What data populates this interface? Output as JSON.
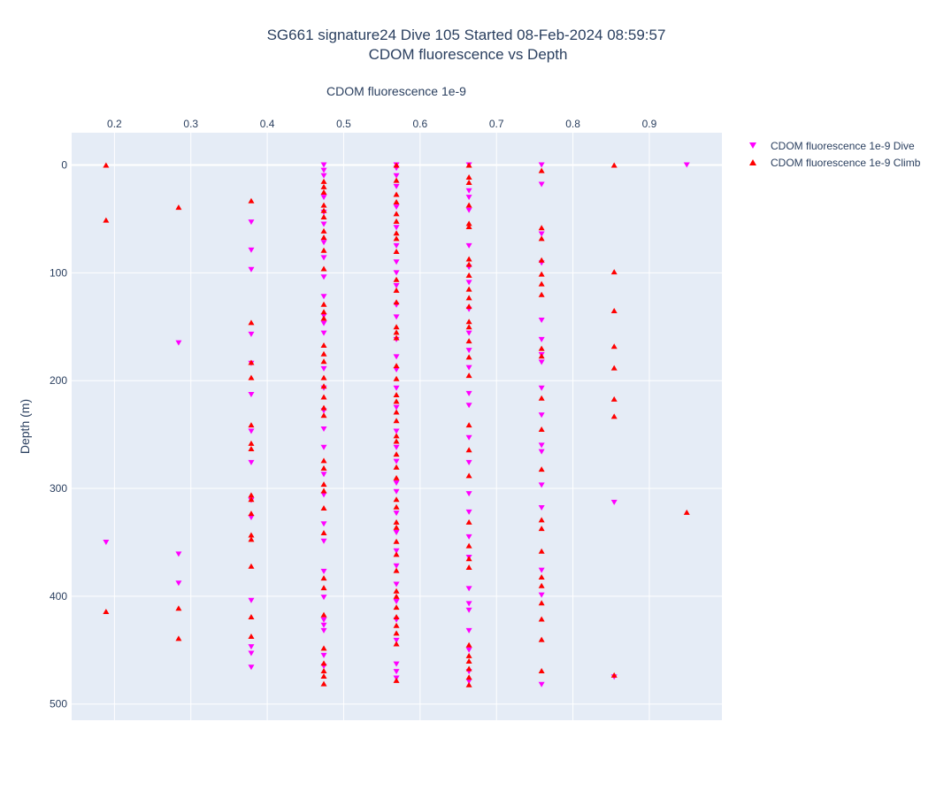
{
  "chart_data": {
    "type": "scatter",
    "title": "SG661 signature24 Dive 105 Started 08-Feb-2024 08:59:57",
    "subtitle": "CDOM fluorescence vs Depth",
    "xlabel": "CDOM fluorescence 1e-9",
    "ylabel": "Depth (m)",
    "xlim": [
      0.144,
      0.995
    ],
    "ylim": [
      515,
      -30
    ],
    "x_axis_position": "top",
    "y_reversed": true,
    "grid": true,
    "legend_position": "top-right",
    "xticks": [
      0.2,
      0.3,
      0.4,
      0.5,
      0.6,
      0.7,
      0.8,
      0.9
    ],
    "xtick_labels": [
      "0.2",
      "0.3",
      "0.4",
      "0.5",
      "0.6",
      "0.7",
      "0.8",
      "0.9"
    ],
    "yticks": [
      0,
      100,
      200,
      300,
      400,
      500
    ],
    "ytick_labels": [
      "0",
      "100",
      "200",
      "300",
      "400",
      "500"
    ],
    "series": [
      {
        "name": "CDOM fluorescence 1e-9 Dive",
        "marker": "triangle-down",
        "color": "#ff00ff",
        "columns": [
          {
            "x": 0.189,
            "depths": [
              350
            ]
          },
          {
            "x": 0.284,
            "depths": [
              165,
              361,
              388
            ]
          },
          {
            "x": 0.379,
            "depths": [
              53,
              79,
              97,
              157,
              184,
              213,
              247,
              276,
              311,
              327,
              404,
              447,
              453,
              466
            ]
          },
          {
            "x": 0.474,
            "depths": [
              0,
              5,
              10,
              30,
              44,
              55,
              72,
              86,
              104,
              122,
              140,
              147,
              156,
              189,
              207,
              228,
              245,
              262,
              287,
              306,
              333,
              349,
              377,
              401,
              422,
              427,
              432,
              455,
              465
            ]
          },
          {
            "x": 0.569,
            "depths": [
              0,
              3,
              10,
              20,
              39,
              58,
              75,
              90,
              100,
              112,
              130,
              141,
              162,
              178,
              190,
              207,
              225,
              247,
              262,
              275,
              295,
              303,
              323,
              341,
              358,
              372,
              389,
              405,
              422,
              441,
              463,
              470,
              476
            ]
          },
          {
            "x": 0.664,
            "depths": [
              0,
              24,
              30,
              42,
              75,
              95,
              109,
              134,
              156,
              172,
              188,
              212,
              223,
              253,
              276,
              305,
              322,
              345,
              364,
              393,
              407,
              413,
              432,
              450,
              470,
              479
            ]
          },
          {
            "x": 0.759,
            "depths": [
              0,
              18,
              64,
              91,
              144,
              162,
              176,
              183,
              207,
              232,
              260,
              266,
              297,
              318,
              376,
              399,
              482
            ]
          },
          {
            "x": 0.854,
            "depths": [
              313,
              475
            ]
          },
          {
            "x": 0.949,
            "depths": [
              0
            ]
          }
        ]
      },
      {
        "name": "CDOM fluorescence 1e-9 Climb",
        "marker": "triangle-up",
        "color": "#ff0000",
        "columns": [
          {
            "x": 0.189,
            "depths": [
              0,
              51,
              414
            ]
          },
          {
            "x": 0.284,
            "depths": [
              39,
              411,
              439
            ]
          },
          {
            "x": 0.379,
            "depths": [
              33,
              146,
              183,
              197,
              241,
              258,
              263,
              306,
              310,
              323,
              343,
              347,
              372,
              419,
              437
            ]
          },
          {
            "x": 0.474,
            "depths": [
              15,
              20,
              25,
              37,
              42,
              48,
              61,
              67,
              79,
              96,
              129,
              136,
              142,
              167,
              175,
              182,
              197,
              205,
              215,
              225,
              232,
              274,
              281,
              296,
              302,
              318,
              341,
              383,
              392,
              417,
              448,
              462,
              469,
              474,
              481
            ]
          },
          {
            "x": 0.569,
            "depths": [
              0,
              14,
              27,
              34,
              45,
              52,
              63,
              68,
              80,
              106,
              116,
              127,
              150,
              155,
              160,
              186,
              198,
              213,
              219,
              229,
              237,
              251,
              256,
              268,
              280,
              290,
              310,
              317,
              331,
              336,
              349,
              361,
              376,
              395,
              400,
              410,
              419,
              427,
              434,
              444,
              478
            ]
          },
          {
            "x": 0.664,
            "depths": [
              0,
              11,
              16,
              37,
              54,
              57,
              87,
              92,
              102,
              115,
              123,
              131,
              145,
              150,
              163,
              178,
              195,
              241,
              264,
              288,
              331,
              353,
              365,
              373,
              445,
              455,
              460,
              467,
              475,
              482
            ]
          },
          {
            "x": 0.759,
            "depths": [
              5,
              58,
              68,
              88,
              101,
              110,
              120,
              170,
              177,
              216,
              245,
              282,
              329,
              337,
              358,
              382,
              390,
              406,
              421,
              440,
              469
            ]
          },
          {
            "x": 0.854,
            "depths": [
              0,
              99,
              135,
              168,
              188,
              217,
              233,
              473
            ]
          },
          {
            "x": 0.949,
            "depths": [
              322
            ]
          }
        ]
      }
    ]
  }
}
